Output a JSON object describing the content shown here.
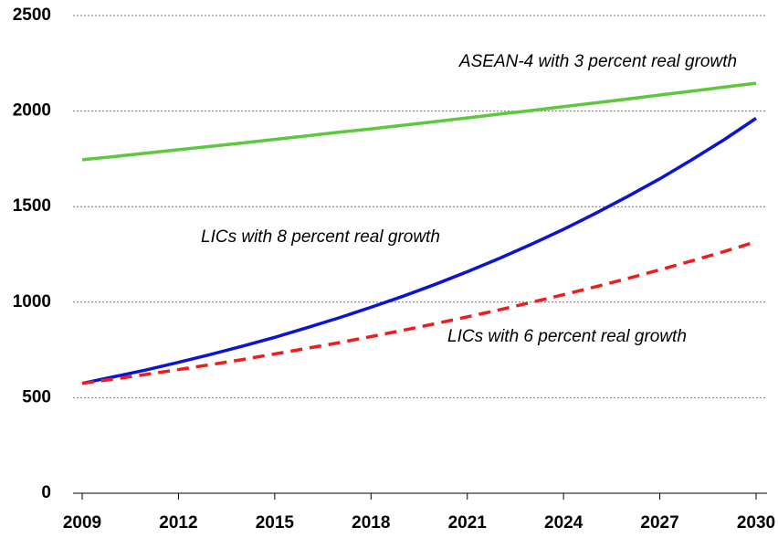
{
  "chart_data": {
    "type": "line",
    "x": [
      2009,
      2010,
      2011,
      2012,
      2013,
      2014,
      2015,
      2016,
      2017,
      2018,
      2019,
      2020,
      2021,
      2022,
      2023,
      2024,
      2025,
      2026,
      2027,
      2028,
      2029,
      2030
    ],
    "series": [
      {
        "name": "ASEAN-4 with 3 percent real growth",
        "color": "#5cc83c",
        "dash": false,
        "values": [
          1745,
          1762,
          1780,
          1798,
          1815,
          1833,
          1852,
          1870,
          1889,
          1907,
          1926,
          1945,
          1964,
          1984,
          2003,
          2023,
          2043,
          2063,
          2084,
          2104,
          2125,
          2146
        ]
      },
      {
        "name": "LICs with 8 percent real growth",
        "color": "#0a14d2",
        "dash": false,
        "values": [
          575,
          610,
          646,
          685,
          726,
          770,
          816,
          866,
          918,
          973,
          1031,
          1093,
          1159,
          1229,
          1303,
          1381,
          1465,
          1553,
          1646,
          1745,
          1850,
          1962
        ]
      },
      {
        "name": "LICs with 6 percent real growth",
        "color": "#ee1c1c",
        "dash": true,
        "values": [
          575,
          598,
          622,
          647,
          673,
          700,
          729,
          758,
          788,
          820,
          853,
          887,
          923,
          960,
          999,
          1039,
          1081,
          1124,
          1169,
          1216,
          1265,
          1316
        ]
      }
    ],
    "xlim": [
      2009,
      2030
    ],
    "xticks": [
      2009,
      2012,
      2015,
      2018,
      2021,
      2024,
      2027,
      2030
    ],
    "ylim": [
      0,
      2500
    ],
    "yticks": [
      0,
      500,
      1000,
      1500,
      2000,
      2500
    ],
    "grid": true
  }
}
